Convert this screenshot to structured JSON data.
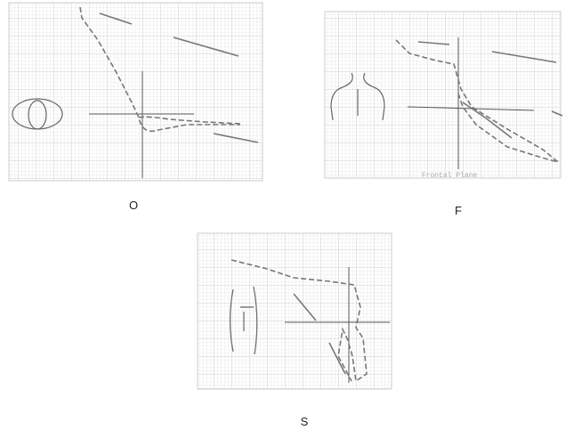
{
  "panels": [
    {
      "label": "O"
    },
    {
      "label": "F",
      "caption": "Frontal Plane"
    },
    {
      "label": "S"
    }
  ]
}
